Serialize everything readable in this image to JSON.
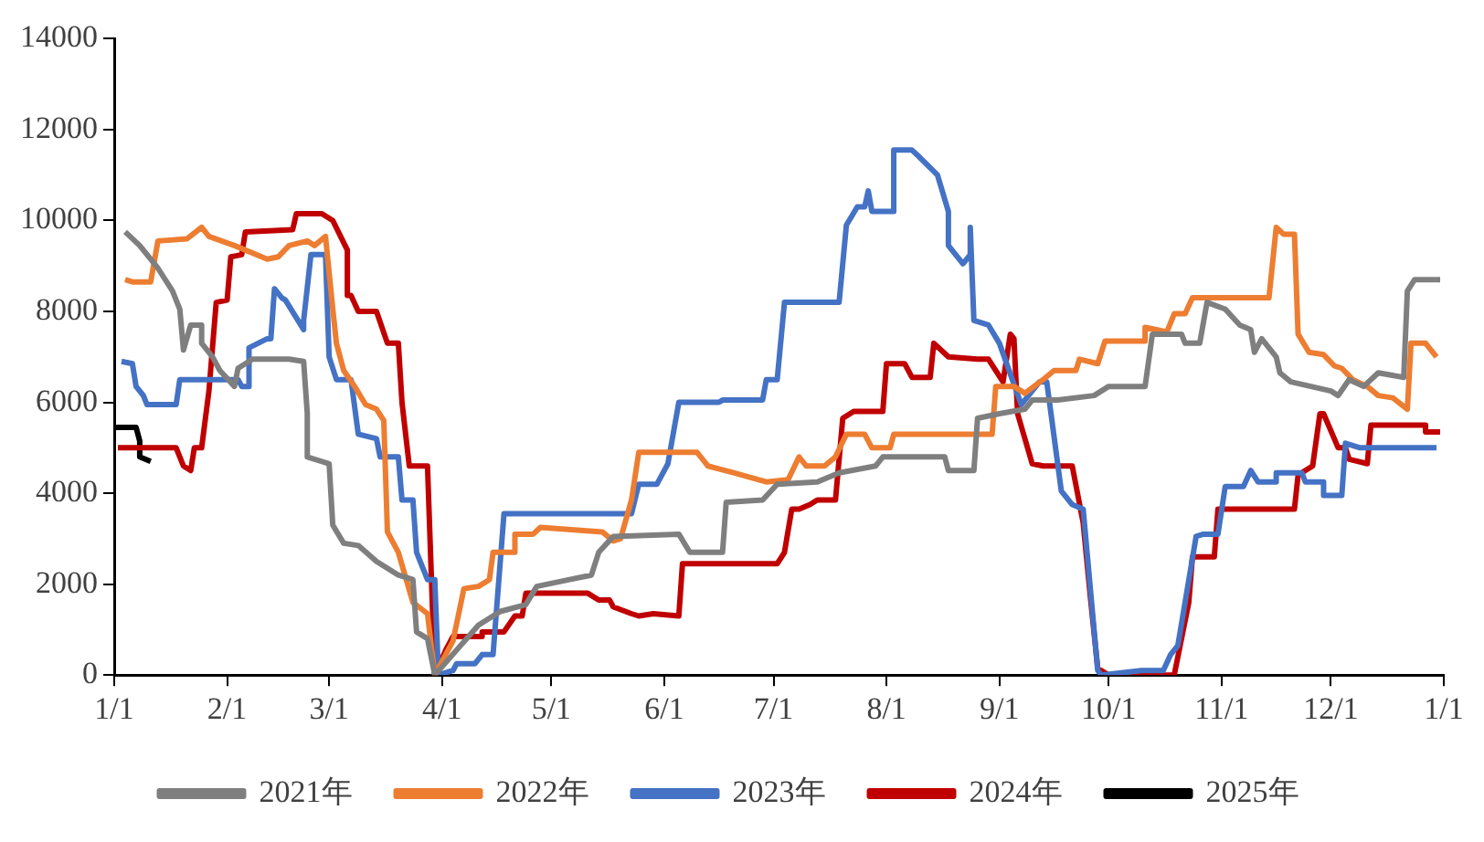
{
  "chart_data": {
    "type": "line",
    "xlim": [
      "--01-01",
      "--12-31T23:59"
    ],
    "xticks": [
      {
        "value": "--01-01",
        "label": "1/1"
      },
      {
        "value": "--02-01",
        "label": "2/1"
      },
      {
        "value": "--03-01",
        "label": "3/1"
      },
      {
        "value": "--04-01",
        "label": "4/1"
      },
      {
        "value": "--05-01",
        "label": "5/1"
      },
      {
        "value": "--06-01",
        "label": "6/1"
      },
      {
        "value": "--07-01",
        "label": "7/1"
      },
      {
        "value": "--08-01",
        "label": "8/1"
      },
      {
        "value": "--09-01",
        "label": "9/1"
      },
      {
        "value": "--10-01",
        "label": "10/1"
      },
      {
        "value": "--11-01",
        "label": "11/1"
      },
      {
        "value": "--12-01",
        "label": "12/1"
      },
      {
        "value": "--12-31T23:59",
        "label": "1/1"
      }
    ],
    "ylim": [
      0,
      14000
    ],
    "yticks": [
      0,
      2000,
      4000,
      6000,
      8000,
      10000,
      12000,
      14000
    ],
    "grid": false,
    "legend": "bottom",
    "marker": "none",
    "series": [
      {
        "name": "2021年",
        "color": "#7f7f7f",
        "x": [
          "--01-04",
          "--01-08",
          "--01-13",
          "--01-17",
          "--01-19",
          "--01-20",
          "--01-22",
          "--01-25",
          "--01-25",
          "--01-28",
          "--01-30",
          "--02-03",
          "--02-04",
          "--02-08",
          "--02-18",
          "--02-22",
          "--02-23",
          "--02-23",
          "--03-01",
          "--03-02",
          "--03-05",
          "--03-09",
          "--03-14",
          "--03-20",
          "--03-24",
          "--03-25",
          "--03-28",
          "--03-30",
          "--04-11",
          "--04-17",
          "--04-24",
          "--04-27",
          "--05-06",
          "--05-12",
          "--05-14",
          "--05-18",
          "--06-05",
          "--06-08",
          "--06-17",
          "--06-18",
          "--06-28",
          "--07-02",
          "--07-13",
          "--07-19",
          "--07-29",
          "--07-31",
          "--08-17",
          "--08-18",
          "--08-25",
          "--08-26",
          "--09-01",
          "--09-08",
          "--09-10",
          "--09-17",
          "--09-27",
          "--10-01",
          "--10-11",
          "--10-13",
          "--10-21",
          "--10-22",
          "--10-26",
          "--10-28",
          "--11-02",
          "--11-06",
          "--11-09",
          "--11-10",
          "--11-12",
          "--11-16",
          "--11-17",
          "--11-20",
          "--12-01",
          "--12-03",
          "--12-06",
          "--12-10",
          "--12-14",
          "--12-21",
          "--12-22",
          "--12-24",
          "--12-31"
        ],
        "values": [
          9750,
          9450,
          8950,
          8450,
          8050,
          7150,
          7700,
          7700,
          7300,
          7000,
          6700,
          6350,
          6750,
          6950,
          6950,
          6900,
          5750,
          4800,
          4650,
          3300,
          2900,
          2850,
          2500,
          2200,
          2100,
          950,
          800,
          0,
          1100,
          1400,
          1550,
          1950,
          2100,
          2200,
          2700,
          3050,
          3100,
          2700,
          2700,
          3800,
          3850,
          4200,
          4250,
          4450,
          4600,
          4800,
          4800,
          4500,
          4500,
          5650,
          5750,
          5850,
          6050,
          6050,
          6150,
          6350,
          6350,
          7500,
          7500,
          7300,
          7300,
          8200,
          8050,
          7700,
          7600,
          7100,
          7400,
          7000,
          6650,
          6450,
          6250,
          6150,
          6500,
          6350,
          6650,
          6550,
          8450,
          8700,
          8700
        ]
      },
      {
        "name": "2022年",
        "color": "#ed7d31",
        "x": [
          "--01-04",
          "--01-06",
          "--01-11",
          "--01-13",
          "--01-21",
          "--01-25",
          "--01-27",
          "--02-03",
          "--02-12",
          "--02-15",
          "--02-18",
          "--02-23",
          "--02-25",
          "--02-28",
          "--03-02",
          "--03-03",
          "--03-05",
          "--03-08",
          "--03-11",
          "--03-14",
          "--03-16",
          "--03-17",
          "--03-20",
          "--03-24",
          "--03-28",
          "--03-30",
          "--04-04",
          "--04-07",
          "--04-11",
          "--04-14",
          "--04-15",
          "--04-21",
          "--04-21",
          "--04-26",
          "--04-28",
          "--05-15",
          "--05-18",
          "--05-20",
          "--05-23",
          "--05-25",
          "--06-10",
          "--06-13",
          "--06-20",
          "--06-29",
          "--07-05",
          "--07-08",
          "--07-10",
          "--07-15",
          "--07-18",
          "--07-21",
          "--07-26",
          "--07-28",
          "--08-02",
          "--08-03",
          "--08-30",
          "--08-31",
          "--09-05",
          "--09-08",
          "--09-13",
          "--09-16",
          "--09-22",
          "--09-23",
          "--09-28",
          "--09-30",
          "--10-11",
          "--10-11",
          "--10-17",
          "--10-19",
          "--10-22",
          "--10-24",
          "--11-14",
          "--11-16",
          "--11-18",
          "--11-21",
          "--11-22",
          "--11-25",
          "--11-29",
          "--12-02",
          "--12-04",
          "--12-07",
          "--12-11",
          "--12-14",
          "--12-18",
          "--12-22",
          "--12-23",
          "--12-27",
          "--12-30"
        ],
        "values": [
          8700,
          8650,
          8650,
          9550,
          9600,
          9850,
          9650,
          9450,
          9150,
          9200,
          9450,
          9550,
          9450,
          9650,
          8050,
          7300,
          6700,
          6350,
          5950,
          5850,
          5600,
          3150,
          2700,
          1600,
          1350,
          0,
          750,
          1900,
          1950,
          2100,
          2700,
          2700,
          3100,
          3100,
          3250,
          3150,
          2950,
          3000,
          3850,
          4900,
          4900,
          4600,
          4450,
          4250,
          4300,
          4800,
          4600,
          4600,
          4800,
          5300,
          5300,
          5000,
          5000,
          5300,
          5300,
          6350,
          6350,
          6200,
          6500,
          6700,
          6700,
          6950,
          6850,
          7350,
          7350,
          7650,
          7550,
          7950,
          7950,
          8300,
          8300,
          9850,
          9700,
          9700,
          7500,
          7100,
          7050,
          6800,
          6750,
          6500,
          6350,
          6150,
          6100,
          5850,
          7300,
          7300,
          7000
        ]
      },
      {
        "name": "2023年",
        "color": "#4472c4",
        "x": [
          "--01-03",
          "--01-06",
          "--01-07",
          "--01-09",
          "--01-10",
          "--01-18",
          "--01-19",
          "--02-04",
          "--02-05",
          "--02-07",
          "--02-07",
          "--02-12",
          "--02-13",
          "--02-14",
          "--02-16",
          "--02-17",
          "--02-22",
          "--02-22",
          "--02-24",
          "--02-28",
          "--03-01",
          "--03-03",
          "--03-07",
          "--03-09",
          "--03-14",
          "--03-15",
          "--03-20",
          "--03-21",
          "--03-24",
          "--03-25",
          "--03-28",
          "--03-30",
          "--03-31",
          "--04-04",
          "--04-05",
          "--04-10",
          "--04-12",
          "--04-15",
          "--04-18",
          "--05-23",
          "--05-25",
          "--05-30",
          "--06-02",
          "--06-05",
          "--06-16",
          "--06-17",
          "--06-28",
          "--06-29",
          "--07-02",
          "--07-04",
          "--07-19",
          "--07-21",
          "--07-24",
          "--07-26",
          "--07-27",
          "--07-28",
          "--08-03",
          "--08-03",
          "--08-08",
          "--08-10",
          "--08-15",
          "--08-18",
          "--08-18",
          "--08-22",
          "--08-24",
          "--08-24",
          "--08-25",
          "--08-29",
          "--09-01",
          "--09-07",
          "--09-12",
          "--09-14",
          "--09-18",
          "--09-21",
          "--09-24",
          "--09-28",
          "--09-29",
          "--10-10",
          "--10-16",
          "--10-18",
          "--10-20",
          "--10-25",
          "--10-27",
          "--10-31",
          "--11-02",
          "--11-07",
          "--11-09",
          "--11-11",
          "--11-16",
          "--11-16",
          "--11-23",
          "--11-24",
          "--11-29",
          "--11-29",
          "--12-04",
          "--12-05",
          "--12-09",
          "--12-30"
        ],
        "values": [
          6900,
          6850,
          6350,
          6150,
          5950,
          5950,
          6500,
          6500,
          6350,
          6350,
          7200,
          7400,
          7400,
          8500,
          8300,
          8250,
          7600,
          7800,
          9250,
          9250,
          7000,
          6500,
          6500,
          5300,
          5200,
          4800,
          4800,
          3850,
          3850,
          2700,
          2100,
          2100,
          0,
          100,
          250,
          250,
          450,
          450,
          3550,
          3550,
          4200,
          4200,
          4650,
          6000,
          6000,
          6050,
          6050,
          6500,
          6500,
          8200,
          8200,
          9900,
          10300,
          10300,
          10650,
          10200,
          10200,
          11550,
          11550,
          11400,
          11000,
          10200,
          9450,
          9050,
          9250,
          9850,
          7800,
          7700,
          7300,
          5950,
          6450,
          6450,
          4050,
          3750,
          3650,
          100,
          0,
          100,
          100,
          450,
          650,
          3050,
          3100,
          3100,
          4150,
          4150,
          4500,
          4250,
          4250,
          4450,
          4450,
          4250,
          4250,
          3950,
          3950,
          5100,
          5000,
          5000
        ]
      },
      {
        "name": "2024年",
        "color": "#c00000",
        "x": [
          "--01-02",
          "--01-18",
          "--01-20",
          "--01-22",
          "--01-23",
          "--01-25",
          "--01-27",
          "--01-29",
          "--02-01",
          "--02-02",
          "--02-05",
          "--02-06",
          "--02-19",
          "--02-20",
          "--02-27",
          "--03-02",
          "--03-06",
          "--03-06",
          "--03-07",
          "--03-09",
          "--03-14",
          "--03-17",
          "--03-20",
          "--03-21",
          "--03-23",
          "--03-28",
          "--03-30",
          "--04-02",
          "--04-04",
          "--04-12",
          "--04-12",
          "--04-18",
          "--04-21",
          "--04-23",
          "--04-24",
          "--05-11",
          "--05-14",
          "--05-17",
          "--05-18",
          "--05-23",
          "--05-25",
          "--05-29",
          "--06-05",
          "--06-06",
          "--07-02",
          "--07-04",
          "--07-06",
          "--07-08",
          "--07-11",
          "--07-13",
          "--07-18",
          "--07-20",
          "--07-23",
          "--07-31",
          "--08-01",
          "--08-06",
          "--08-08",
          "--08-13",
          "--08-14",
          "--08-18",
          "--08-26",
          "--08-29",
          "--09-02",
          "--09-04",
          "--09-05",
          "--09-06",
          "--09-10",
          "--09-13",
          "--09-21",
          "--09-24",
          "--09-26",
          "--09-28",
          "--10-01",
          "--10-19",
          "--10-23",
          "--10-24",
          "--10-30",
          "--10-31",
          "--11-21",
          "--11-22",
          "--11-26",
          "--11-28",
          "--11-29",
          "--12-03",
          "--12-05",
          "--12-06",
          "--12-11",
          "--12-12",
          "--12-27",
          "--12-27",
          "--12-31"
        ],
        "values": [
          5000,
          5000,
          4600,
          4500,
          5000,
          5000,
          6250,
          8200,
          8250,
          9200,
          9250,
          9750,
          9800,
          10150,
          10150,
          10000,
          9350,
          8350,
          8350,
          8000,
          8000,
          7300,
          7300,
          6000,
          4600,
          4600,
          0,
          550,
          850,
          850,
          950,
          950,
          1300,
          1300,
          1800,
          1800,
          1650,
          1650,
          1500,
          1350,
          1300,
          1350,
          1300,
          2450,
          2450,
          2700,
          3650,
          3650,
          3750,
          3850,
          3850,
          5650,
          5800,
          5800,
          6850,
          6850,
          6550,
          6550,
          7300,
          7000,
          6950,
          6950,
          6450,
          7500,
          7400,
          5750,
          4650,
          4600,
          4600,
          3350,
          1700,
          150,
          0,
          0,
          1600,
          2600,
          2600,
          3650,
          3650,
          4400,
          4600,
          5750,
          5750,
          5000,
          5000,
          4750,
          4650,
          5500,
          5500,
          5350,
          5350
        ]
      },
      {
        "name": "2025年",
        "color": "#000000",
        "x": [
          "--01-01",
          "--01-07",
          "--01-08",
          "--01-08",
          "--01-11"
        ],
        "values": [
          5450,
          5450,
          5150,
          4800,
          4700
        ]
      }
    ]
  }
}
